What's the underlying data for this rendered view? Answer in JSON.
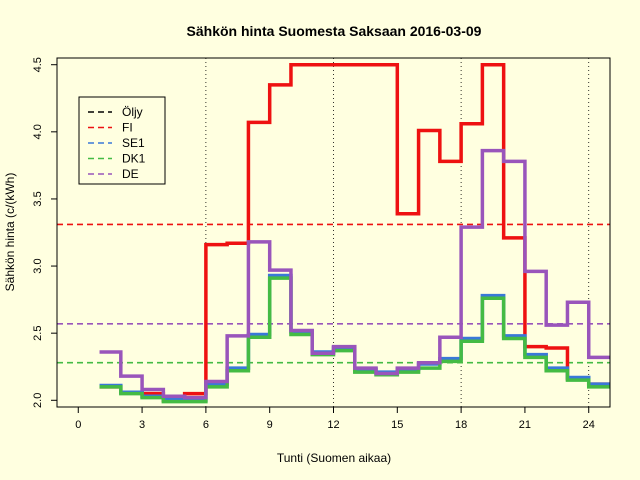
{
  "chart_data": {
    "type": "line",
    "title": "Sähkön hinta Suomesta Saksaan 2016-03-09",
    "xlabel": "Tunti (Suomen aikaa)",
    "ylabel": "Sähkön hinta (c/(kWh)",
    "xlim": [
      -1,
      25
    ],
    "ylim": [
      1.95,
      4.55
    ],
    "x_ticks": [
      0,
      3,
      6,
      9,
      12,
      15,
      18,
      21,
      24
    ],
    "y_ticks": [
      2.0,
      2.5,
      3.0,
      3.5,
      4.0,
      4.5
    ],
    "y_tick_labels": [
      "2.0",
      "2.5",
      "3.0",
      "3.5",
      "4.0",
      "4.5"
    ],
    "vertical_gridlines_at": [
      6,
      12,
      18,
      24
    ],
    "x": [
      1,
      2,
      3,
      4,
      5,
      6,
      7,
      8,
      9,
      10,
      11,
      12,
      13,
      14,
      15,
      16,
      17,
      18,
      19,
      20,
      21,
      22,
      23,
      24,
      25
    ],
    "series": [
      {
        "name": "FI",
        "color": "#ee1111",
        "values": [
          2.1,
          2.06,
          2.05,
          2.0,
          2.05,
          3.16,
          3.17,
          4.07,
          4.35,
          4.5,
          4.5,
          4.5,
          4.5,
          4.5,
          3.39,
          4.01,
          3.78,
          4.06,
          4.5,
          3.21,
          2.4,
          2.39,
          2.16,
          2.12,
          2.12
        ]
      },
      {
        "name": "SE1",
        "color": "#3a78d8",
        "values": [
          2.11,
          2.06,
          2.03,
          2.01,
          2.0,
          2.12,
          2.24,
          2.49,
          2.93,
          2.51,
          2.36,
          2.39,
          2.23,
          2.21,
          2.23,
          2.27,
          2.31,
          2.46,
          2.78,
          2.48,
          2.34,
          2.24,
          2.17,
          2.12,
          2.12
        ]
      },
      {
        "name": "DK1",
        "color": "#44bb44",
        "values": [
          2.1,
          2.05,
          2.02,
          1.99,
          1.99,
          2.1,
          2.22,
          2.47,
          2.91,
          2.49,
          2.34,
          2.37,
          2.21,
          2.19,
          2.21,
          2.24,
          2.29,
          2.44,
          2.76,
          2.46,
          2.32,
          2.22,
          2.15,
          2.1,
          2.1
        ]
      },
      {
        "name": "DE",
        "color": "#9955bb",
        "values": [
          2.36,
          2.18,
          2.08,
          2.03,
          2.02,
          2.14,
          2.48,
          3.18,
          2.97,
          2.52,
          2.35,
          2.4,
          2.24,
          2.2,
          2.24,
          2.28,
          2.47,
          3.29,
          3.86,
          3.78,
          2.96,
          2.56,
          2.73,
          2.32,
          2.32
        ]
      }
    ],
    "reference_lines": [
      {
        "name": "FI",
        "value": 3.31,
        "color": "#ee1111"
      },
      {
        "name": "DE",
        "value": 2.57,
        "color": "#9955bb"
      },
      {
        "name": "DK1",
        "value": 2.28,
        "color": "#44bb44"
      }
    ],
    "legend": {
      "position": "top-left",
      "entries": [
        {
          "label": "Öljy",
          "color": "#000000"
        },
        {
          "label": "FI",
          "color": "#ee1111"
        },
        {
          "label": "SE1",
          "color": "#3a78d8"
        },
        {
          "label": "DK1",
          "color": "#44bb44"
        },
        {
          "label": "DE",
          "color": "#9955bb"
        }
      ]
    },
    "background_color": "#ffffe0"
  }
}
